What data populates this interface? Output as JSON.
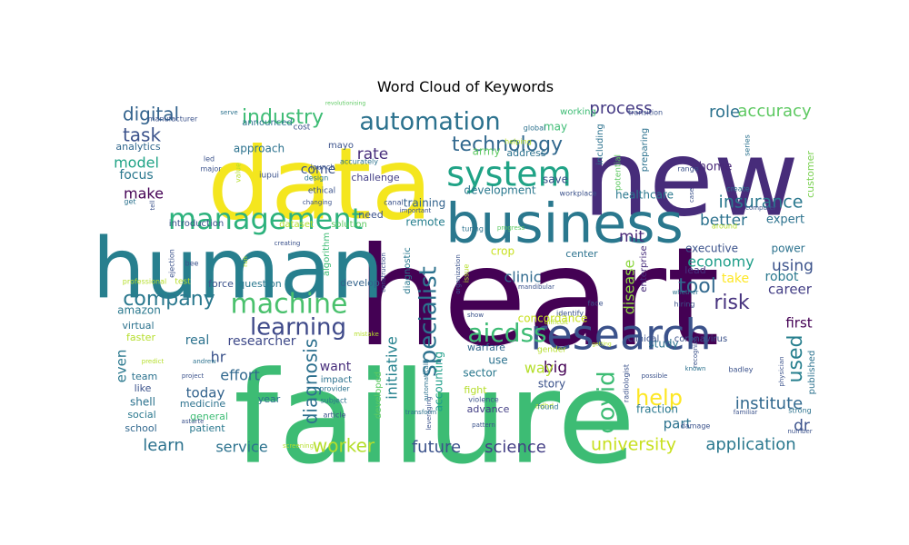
{
  "chart_data": {
    "type": "wordcloud",
    "title": "Word Cloud of Keywords",
    "words": [
      {
        "text": "heart",
        "color": "#440154"
      },
      {
        "text": "failure",
        "color": "#3dbc74"
      },
      {
        "text": "new",
        "color": "#472c7a"
      },
      {
        "text": "data",
        "color": "#f4e61e"
      },
      {
        "text": "human",
        "color": "#277f8e"
      },
      {
        "text": "business",
        "color": "#2a788e"
      },
      {
        "text": "research",
        "color": "#3b528b"
      },
      {
        "text": "management",
        "color": "#2db27d"
      },
      {
        "text": "machine",
        "color": "#4ac16d"
      },
      {
        "text": "system",
        "color": "#20a386"
      },
      {
        "text": "automation",
        "color": "#2c728e"
      },
      {
        "text": "learning",
        "color": "#3e4989"
      },
      {
        "text": "company",
        "color": "#2a788e"
      },
      {
        "text": "technology",
        "color": "#31688e"
      },
      {
        "text": "specialist",
        "color": "#2c728e"
      },
      {
        "text": "aicdss",
        "color": "#3dbc74"
      },
      {
        "text": "covid",
        "color": "#3dbc74"
      },
      {
        "text": "help",
        "color": "#fde725"
      },
      {
        "text": "industry",
        "color": "#3dbc74"
      },
      {
        "text": "digital",
        "color": "#33638d"
      },
      {
        "text": "task",
        "color": "#3b528b"
      },
      {
        "text": "process",
        "color": "#443983"
      },
      {
        "text": "accuracy",
        "color": "#5ec962"
      },
      {
        "text": "role",
        "color": "#2c728e"
      },
      {
        "text": "insurance",
        "color": "#2a788e"
      },
      {
        "text": "tool",
        "color": "#31688e"
      },
      {
        "text": "risk",
        "color": "#46327e"
      },
      {
        "text": "diagnosis",
        "color": "#2d708e"
      },
      {
        "text": "worker",
        "color": "#b5de2b"
      },
      {
        "text": "future",
        "color": "#3b528b"
      },
      {
        "text": "science",
        "color": "#433e85"
      },
      {
        "text": "university",
        "color": "#c8e020"
      },
      {
        "text": "application",
        "color": "#2a788e"
      },
      {
        "text": "service",
        "color": "#2c728e"
      },
      {
        "text": "learn",
        "color": "#2c728e"
      },
      {
        "text": "institute",
        "color": "#31688e"
      },
      {
        "text": "used",
        "color": "#277f8e"
      },
      {
        "text": "make",
        "color": "#440154"
      },
      {
        "text": "model",
        "color": "#20a386"
      },
      {
        "text": "rate",
        "color": "#472d7b"
      },
      {
        "text": "mit",
        "color": "#482878"
      },
      {
        "text": "economy",
        "color": "#1f9e89"
      },
      {
        "text": "better",
        "color": "#2c728e"
      },
      {
        "text": "using",
        "color": "#3b528b"
      },
      {
        "text": "big",
        "color": "#440154"
      },
      {
        "text": "clinic",
        "color": "#306a8e"
      },
      {
        "text": "hr",
        "color": "#3b528b"
      },
      {
        "text": "effort",
        "color": "#31688e"
      },
      {
        "text": "today",
        "color": "#33638d"
      },
      {
        "text": "even",
        "color": "#2a788e"
      },
      {
        "text": "way",
        "color": "#b5de2b"
      },
      {
        "text": "initiative",
        "color": "#26828e"
      },
      {
        "text": "disease",
        "color": "#8fd744"
      },
      {
        "text": "part",
        "color": "#2c728e"
      },
      {
        "text": "dr",
        "color": "#3b528b"
      },
      {
        "text": "career",
        "color": "#433e85"
      },
      {
        "text": "robot",
        "color": "#2a788e"
      },
      {
        "text": "first",
        "color": "#440154"
      },
      {
        "text": "researcher",
        "color": "#3e4989"
      },
      {
        "text": "want",
        "color": "#472d7b"
      },
      {
        "text": "real",
        "color": "#2c728e"
      },
      {
        "text": "focus",
        "color": "#2a788e"
      },
      {
        "text": "come",
        "color": "#3b528b"
      },
      {
        "text": "approach",
        "color": "#2c728e"
      },
      {
        "text": "analytics",
        "color": "#31688e"
      },
      {
        "text": "home",
        "color": "#482878"
      },
      {
        "text": "expert",
        "color": "#2c728e"
      },
      {
        "text": "executive",
        "color": "#3b528b"
      },
      {
        "text": "power",
        "color": "#2c728e"
      },
      {
        "text": "take",
        "color": "#fde725"
      },
      {
        "text": "lead",
        "color": "#46327e"
      },
      {
        "text": "healthcare",
        "color": "#2a788e"
      },
      {
        "text": "concordance",
        "color": "#c8e020"
      },
      {
        "text": "development",
        "color": "#2a788e"
      },
      {
        "text": "training",
        "color": "#33638d"
      },
      {
        "text": "remote",
        "color": "#277f8e"
      },
      {
        "text": "crop",
        "color": "#c8e020"
      },
      {
        "text": "center",
        "color": "#2c728e"
      },
      {
        "text": "army",
        "color": "#5ec962"
      },
      {
        "text": "save",
        "color": "#3b528b"
      },
      {
        "text": "may",
        "color": "#3dbc74"
      },
      {
        "text": "address",
        "color": "#2c728e"
      },
      {
        "text": "challenge",
        "color": "#433e85"
      },
      {
        "text": "sector",
        "color": "#2a788e"
      },
      {
        "text": "accounting",
        "color": "#1f9e89"
      },
      {
        "text": "use",
        "color": "#2c728e"
      },
      {
        "text": "warfare",
        "color": "#31688e"
      },
      {
        "text": "study",
        "color": "#2c728e"
      },
      {
        "text": "fraction",
        "color": "#2a788e"
      },
      {
        "text": "story",
        "color": "#3b528b"
      },
      {
        "text": "fight",
        "color": "#b5de2b"
      },
      {
        "text": "advance",
        "color": "#433e85"
      },
      {
        "text": "amazon",
        "color": "#2a788e"
      },
      {
        "text": "virtual",
        "color": "#2c728e"
      },
      {
        "text": "faster",
        "color": "#b5de2b"
      },
      {
        "text": "team",
        "color": "#2c728e"
      },
      {
        "text": "like",
        "color": "#3b528b"
      },
      {
        "text": "shell",
        "color": "#2c728e"
      },
      {
        "text": "social",
        "color": "#2a788e"
      },
      {
        "text": "school",
        "color": "#31688e"
      },
      {
        "text": "patient",
        "color": "#2a788e"
      },
      {
        "text": "general",
        "color": "#3dbc74"
      },
      {
        "text": "medicine",
        "color": "#2c728e"
      },
      {
        "text": "year",
        "color": "#2c728e"
      },
      {
        "text": "force",
        "color": "#3b528b"
      },
      {
        "text": "question",
        "color": "#2a788e"
      },
      {
        "text": "introduction",
        "color": "#3b528b"
      },
      {
        "text": "dataset",
        "color": "#b5de2b"
      },
      {
        "text": "solution",
        "color": "#5ec962"
      },
      {
        "text": "need",
        "color": "#3b528b"
      },
      {
        "text": "algorithm",
        "color": "#3dbc74"
      },
      {
        "text": "develop",
        "color": "#33638d"
      },
      {
        "text": "impact",
        "color": "#2c728e"
      },
      {
        "text": "developed",
        "color": "#5ec962"
      },
      {
        "text": "diagnostic",
        "color": "#2a788e"
      },
      {
        "text": "clinical",
        "color": "#3b528b"
      },
      {
        "text": "coronavirus",
        "color": "#3b528b"
      },
      {
        "text": "enterprise",
        "color": "#472d7b"
      },
      {
        "text": "including",
        "color": "#2c728e"
      },
      {
        "text": "preparing",
        "color": "#2c728e"
      },
      {
        "text": "customer",
        "color": "#7ad151"
      },
      {
        "text": "published",
        "color": "#2c728e"
      },
      {
        "text": "working",
        "color": "#3dbc74"
      },
      {
        "text": "mayo",
        "color": "#3b528b"
      },
      {
        "text": "ethical",
        "color": "#3b528b"
      },
      {
        "text": "launch",
        "color": "#3b528b"
      },
      {
        "text": "iupui",
        "color": "#3b528b"
      },
      {
        "text": "announced",
        "color": "#2c728e"
      },
      {
        "text": "cost",
        "color": "#3b528b"
      },
      {
        "text": "design",
        "color": "#2a788e"
      },
      {
        "text": "manufacturer",
        "color": "#3b528b"
      },
      {
        "text": "serve",
        "color": "#2c728e"
      },
      {
        "text": "revolutionising",
        "color": "#5ec962"
      },
      {
        "text": "led",
        "color": "#3b528b"
      },
      {
        "text": "major",
        "color": "#3b528b"
      },
      {
        "text": "value",
        "color": "#b5de2b"
      },
      {
        "text": "accurately",
        "color": "#2c728e"
      },
      {
        "text": "helping",
        "color": "#b5de2b"
      },
      {
        "text": "global",
        "color": "#2c728e"
      },
      {
        "text": "transition",
        "color": "#3b528b"
      },
      {
        "text": "potential",
        "color": "#5ec962"
      },
      {
        "text": "range",
        "color": "#3b528b"
      },
      {
        "text": "create",
        "color": "#2c728e"
      },
      {
        "text": "computer",
        "color": "#3b528b"
      },
      {
        "text": "around",
        "color": "#b5de2b"
      },
      {
        "text": "series",
        "color": "#2c728e"
      },
      {
        "text": "workplace",
        "color": "#3b528b"
      },
      {
        "text": "case",
        "color": "#3b528b"
      },
      {
        "text": "turing",
        "color": "#2c728e"
      },
      {
        "text": "important",
        "color": "#3b528b"
      },
      {
        "text": "progress",
        "color": "#5ec962"
      },
      {
        "text": "canal",
        "color": "#3b528b"
      },
      {
        "text": "creating",
        "color": "#3b528b"
      },
      {
        "text": "get",
        "color": "#2c728e"
      },
      {
        "text": "tell",
        "color": "#3b528b"
      },
      {
        "text": "professional",
        "color": "#b5de2b"
      },
      {
        "text": "ejection",
        "color": "#3b528b"
      },
      {
        "text": "bee",
        "color": "#3b528b"
      },
      {
        "text": "test",
        "color": "#b5de2b"
      },
      {
        "text": "construction",
        "color": "#3b528b"
      },
      {
        "text": "organization",
        "color": "#3b528b"
      },
      {
        "text": "issue",
        "color": "#b5de2b"
      },
      {
        "text": "mandibular",
        "color": "#3b528b"
      },
      {
        "text": "face",
        "color": "#3b528b"
      },
      {
        "text": "identify",
        "color": "#3b528b"
      },
      {
        "text": "whether",
        "color": "#2c728e"
      },
      {
        "text": "hiring",
        "color": "#3b528b"
      },
      {
        "text": "recognize",
        "color": "#3b528b"
      },
      {
        "text": "known",
        "color": "#2c728e"
      },
      {
        "text": "possible",
        "color": "#3b528b"
      },
      {
        "text": "badley",
        "color": "#3b528b"
      },
      {
        "text": "physician",
        "color": "#3b528b"
      },
      {
        "text": "familiar",
        "color": "#3b528b"
      },
      {
        "text": "strong",
        "color": "#2c728e"
      },
      {
        "text": "number",
        "color": "#3b528b"
      },
      {
        "text": "damage",
        "color": "#3b528b"
      },
      {
        "text": "adhd",
        "color": "#b5de2b"
      },
      {
        "text": "found",
        "color": "#2c728e"
      },
      {
        "text": "gender",
        "color": "#b5de2b"
      },
      {
        "text": "getting",
        "color": "#b5de2b"
      },
      {
        "text": "radiologist",
        "color": "#3b528b"
      },
      {
        "text": "difficult",
        "color": "#b5de2b"
      },
      {
        "text": "mistake",
        "color": "#b5de2b"
      },
      {
        "text": "show",
        "color": "#3b528b"
      },
      {
        "text": "violence",
        "color": "#3b528b"
      },
      {
        "text": "leveraging",
        "color": "#3b528b"
      },
      {
        "text": "automatically",
        "color": "#2c728e"
      },
      {
        "text": "pattern",
        "color": "#3b528b"
      },
      {
        "text": "transform",
        "color": "#2c728e"
      },
      {
        "text": "article",
        "color": "#3b528b"
      },
      {
        "text": "subject",
        "color": "#2c728e"
      },
      {
        "text": "provider",
        "color": "#2c728e"
      },
      {
        "text": "screening",
        "color": "#b5de2b"
      },
      {
        "text": "changing",
        "color": "#3b528b"
      },
      {
        "text": "andrew",
        "color": "#2c728e"
      },
      {
        "text": "predict",
        "color": "#b5de2b"
      },
      {
        "text": "project",
        "color": "#3b528b"
      },
      {
        "text": "astarte",
        "color": "#3b528b"
      },
      {
        "text": "run",
        "color": "#b5de2b"
      }
    ]
  }
}
